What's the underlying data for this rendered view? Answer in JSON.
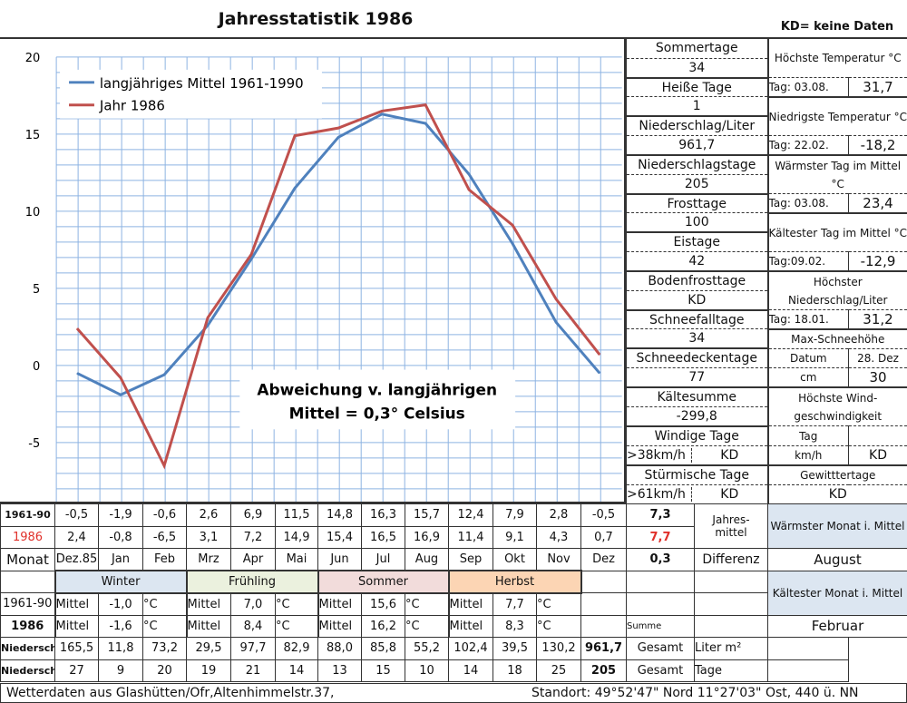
{
  "title": "Jahresstatistik 1986",
  "kd_note": "KD= keine Daten",
  "chart_data": {
    "type": "line",
    "categories": [
      "Dez.85",
      "Jan",
      "Feb",
      "Mrz",
      "Apr",
      "Mai",
      "Jun",
      "Jul",
      "Aug",
      "Sep",
      "Okt",
      "Nov",
      "Dez"
    ],
    "series": [
      {
        "name": "langjähriges Mittel 1961-1990",
        "color": "#4f81bd",
        "values": [
          -0.5,
          -1.9,
          -0.6,
          2.6,
          6.9,
          11.5,
          14.8,
          16.3,
          15.7,
          12.4,
          7.9,
          2.8,
          -0.5
        ]
      },
      {
        "name": "Jahr 1986",
        "color": "#c0504d",
        "values": [
          2.4,
          -0.8,
          -6.5,
          3.1,
          7.2,
          14.9,
          15.4,
          16.5,
          16.9,
          11.4,
          9.1,
          4.3,
          0.7
        ]
      }
    ],
    "ylim": [
      -10,
      20
    ],
    "yticks": [
      "-10",
      "-5",
      "0",
      "5",
      "10",
      "15",
      "20"
    ],
    "grid": true,
    "legend": "top-left",
    "annotation": [
      "Abweichung v. langjährigen",
      "Mittel = 0,3° Celsius"
    ]
  },
  "side": {
    "left": [
      "Sommertage",
      "34",
      "Heiße Tage",
      "1",
      "Niederschlag/Liter",
      "961,7",
      "Niederschlagstage",
      "205",
      "Frosttage",
      "100",
      "Eistage",
      "42",
      "Bodenfrosttage",
      "KD",
      "Schneefalltage",
      "34",
      "Schneedeckentage",
      "77",
      "Kältesumme",
      "-299,8",
      "Windige Tage",
      ">38km/h",
      "KD",
      "Stürmische Tage",
      ">61km/h",
      "KD"
    ],
    "right": {
      "max_temp": "Höchste Temperatur °C",
      "max_temp_day": "Tag: 03.08.",
      "max_temp_val": "31,7",
      "min_temp": "Niedrigste Temperatur °C",
      "min_temp_day": "Tag: 22.02.",
      "min_temp_val": "-18,2",
      "warm_day": "Wärmster Tag im Mittel °C",
      "warm_day_day": "Tag: 03.08.",
      "warm_day_val": "23,4",
      "cold_day": "Kältester Tag im Mittel °C",
      "cold_day_day": "Tag:09.02.",
      "cold_day_val": "-12,9",
      "max_rain": "Höchster Niederschlag/Liter",
      "max_rain_day": "Tag: 18.01.",
      "max_rain_val": "31,2",
      "snow": "Max-Schneehöhe",
      "snow_date_label": "Datum",
      "snow_date": "28. Dez",
      "snow_cm_label": "cm",
      "snow_cm": "30",
      "wind": "Höchste Wind-geschwindigkeit",
      "wind_day_label": "Tag",
      "wind_day": "",
      "wind_kmh_label": "km/h",
      "wind_kmh": "KD",
      "thunder": "Gewitttertage",
      "thunder_val": "KD"
    }
  },
  "table": {
    "row1_label": "1961-90",
    "row1": [
      "-0,5",
      "-1,9",
      "-0,6",
      "2,6",
      "6,9",
      "11,5",
      "14,8",
      "16,3",
      "15,7",
      "12,4",
      "7,9",
      "2,8",
      "-0,5"
    ],
    "row1_mean": "7,3",
    "row2_label": "1986",
    "row2": [
      "2,4",
      "-0,8",
      "-6,5",
      "3,1",
      "7,2",
      "14,9",
      "15,4",
      "16,5",
      "16,9",
      "11,4",
      "9,1",
      "4,3",
      "0,7"
    ],
    "row2_mean": "7,7",
    "jahresmittel": "Jahres-mittel",
    "warmest_label": "Wärmster Monat i. Mittel",
    "warmest": "August",
    "month_label": "Monat",
    "months": [
      "Dez.85",
      "Jan",
      "Feb",
      "Mrz",
      "Apr",
      "Mai",
      "Jun",
      "Jul",
      "Aug",
      "Sep",
      "Okt",
      "Nov",
      "Dez"
    ],
    "diff": "0,3",
    "diff_label": "Differenz",
    "seasons": [
      "Winter",
      "Frühling",
      "Sommer",
      "Herbst"
    ],
    "coldest_label": "Kältester Monat i. Mittel",
    "coldest": "Februar",
    "mittel": "Mittel",
    "unit": "°C",
    "season_1961": [
      "-1,0",
      "7,0",
      "15,6",
      "7,7"
    ],
    "season_1986": [
      "-1,6",
      "8,4",
      "16,2",
      "8,3"
    ],
    "summe": "Summe",
    "rain_label": "Niederschl. Liter",
    "rain": [
      "165,5",
      "11,8",
      "73,2",
      "29,5",
      "97,7",
      "82,9",
      "88,0",
      "85,8",
      "55,2",
      "102,4",
      "39,5",
      "130,2"
    ],
    "rain_total": "961,7",
    "days_label": "Niederschl. Tage",
    "days": [
      "27",
      "9",
      "20",
      "19",
      "21",
      "14",
      "13",
      "15",
      "10",
      "14",
      "18",
      "25"
    ],
    "days_total": "205",
    "gesamt": "Gesamt",
    "liter_unit": "Liter m²",
    "tage_unit": "Tage"
  },
  "footer": {
    "left": "Wetterdaten aus Glashütten/Ofr,Altenhimmelstr.37,",
    "right": "Standort:  49°52'47\" Nord    11°27'03\" Ost, 440 ü. NN"
  }
}
